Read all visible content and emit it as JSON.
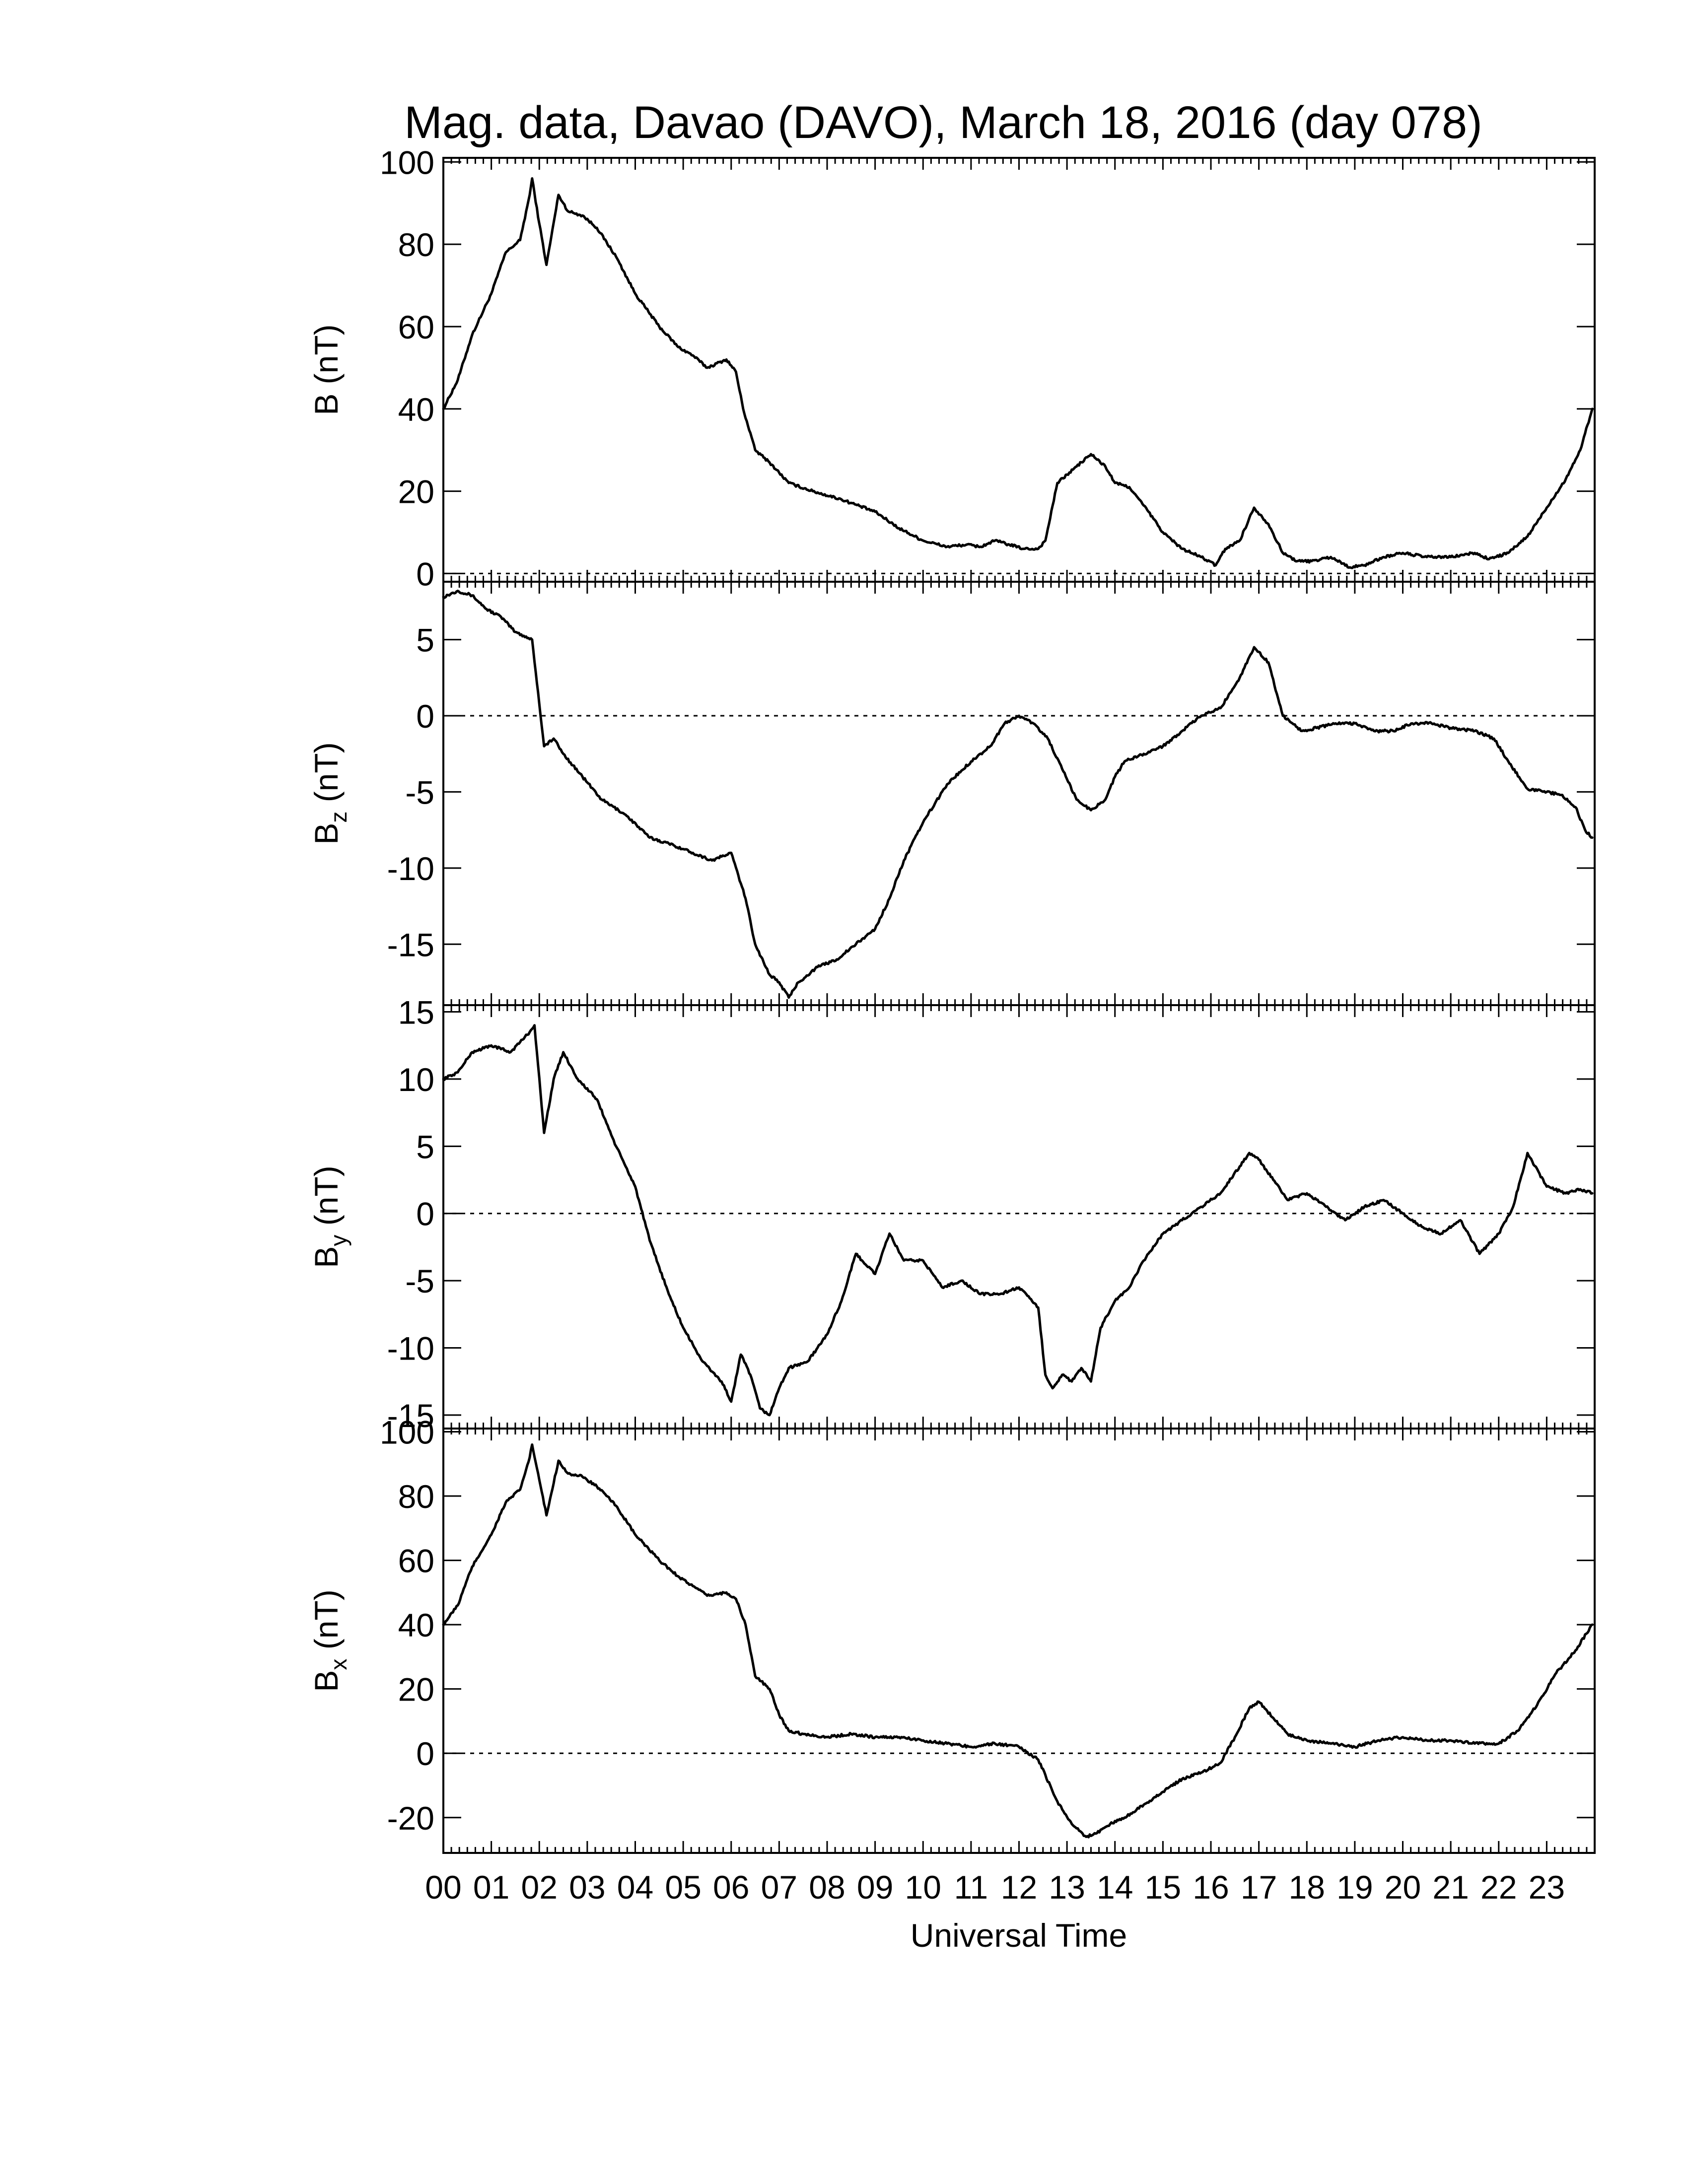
{
  "title": "Mag. data, Davao (DAVO), March 18, 2016 (day 078)",
  "xlabel": "Universal Time",
  "chart_data": [
    {
      "type": "line",
      "id": "B",
      "ylabel": "B (nT)",
      "ylabel_main": "B (nT)",
      "ylabel_sub": "",
      "ylabel_tail": "",
      "ylim": [
        -2,
        101
      ],
      "yticks": [
        0,
        20,
        40,
        60,
        80,
        100
      ],
      "zero_line": true,
      "x_unit": "UT hours",
      "x": [
        0,
        0.3,
        0.6,
        1.0,
        1.3,
        1.6,
        1.8,
        1.85,
        2.0,
        2.15,
        2.4,
        2.6,
        2.9,
        3.2,
        3.6,
        4.0,
        4.5,
        4.9,
        5.2,
        5.5,
        5.9,
        6.1,
        6.25,
        6.5,
        6.8,
        7.2,
        7.7,
        8.3,
        9.0,
        9.5,
        10.0,
        10.5,
        10.9,
        11.2,
        11.5,
        11.8,
        12.1,
        12.4,
        12.55,
        12.8,
        13.2,
        13.5,
        13.8,
        14.0,
        14.3,
        14.7,
        15.0,
        15.4,
        15.8,
        16.1,
        16.3,
        16.6,
        16.9,
        17.2,
        17.5,
        17.8,
        18.1,
        18.5,
        18.9,
        19.2,
        19.6,
        20.0,
        20.5,
        21.0,
        21.5,
        21.8,
        22.2,
        22.6,
        23.0,
        23.4,
        23.7,
        23.95
      ],
      "values": [
        40,
        47,
        58,
        68,
        78,
        81,
        92,
        96,
        85,
        75,
        92,
        88,
        87,
        84,
        77,
        68,
        60,
        55,
        53,
        50,
        52,
        49,
        40,
        30,
        27,
        22,
        20,
        18,
        15,
        11,
        8,
        6.5,
        7,
        6.5,
        8,
        7,
        6,
        6,
        8,
        22,
        26,
        29,
        26,
        22,
        21,
        15,
        10,
        6,
        4,
        2,
        6,
        8,
        16,
        12,
        5,
        3,
        3,
        4,
        1.5,
        2,
        4,
        5,
        4,
        4,
        5,
        3.5,
        5,
        9,
        16,
        23,
        30,
        40
      ]
    },
    {
      "type": "line",
      "id": "Bz",
      "ylabel": "Bz (nT)",
      "ylabel_main": "B",
      "ylabel_sub": "z",
      "ylabel_tail": " (nT)",
      "ylim": [
        -19,
        8.8
      ],
      "yticks": [
        -15,
        -10,
        -5,
        0,
        5
      ],
      "zero_line": true,
      "x_unit": "UT hours",
      "x": [
        0,
        0.3,
        0.6,
        0.9,
        1.2,
        1.5,
        1.85,
        2.1,
        2.3,
        2.5,
        2.9,
        3.3,
        3.8,
        4.3,
        4.8,
        5.2,
        5.6,
        6.0,
        6.3,
        6.5,
        6.8,
        7.0,
        7.2,
        7.4,
        7.8,
        8.2,
        8.6,
        9.0,
        9.3,
        9.6,
        10.0,
        10.5,
        11.0,
        11.4,
        11.7,
        12.0,
        12.3,
        12.6,
        12.9,
        13.2,
        13.5,
        13.8,
        14.0,
        14.2,
        14.6,
        15.0,
        15.4,
        15.8,
        16.2,
        16.6,
        16.9,
        17.2,
        17.5,
        17.9,
        18.2,
        18.6,
        19.0,
        19.4,
        19.8,
        20.2,
        20.6,
        21.0,
        21.5,
        21.9,
        22.2,
        22.6,
        23.0,
        23.3,
        23.6,
        23.8,
        23.95
      ],
      "values": [
        7.8,
        8.2,
        7.9,
        7.0,
        6.5,
        5.5,
        5.0,
        -2.0,
        -1.5,
        -2.5,
        -4.0,
        -5.5,
        -6.5,
        -8.0,
        -8.5,
        -9.0,
        -9.5,
        -9.0,
        -12.0,
        -15.0,
        -17.0,
        -17.5,
        -18.5,
        -17.5,
        -16.5,
        -16.0,
        -15.0,
        -14.0,
        -12.0,
        -9.5,
        -7.0,
        -4.5,
        -3.0,
        -2.0,
        -0.5,
        0.0,
        -0.5,
        -1.5,
        -3.5,
        -5.5,
        -6.2,
        -5.5,
        -4.0,
        -3.0,
        -2.5,
        -2.0,
        -1.0,
        0.0,
        0.5,
        2.5,
        4.5,
        3.5,
        0.0,
        -1.0,
        -0.8,
        -0.5,
        -0.5,
        -1.0,
        -1.0,
        -0.5,
        -0.5,
        -0.8,
        -1.0,
        -1.5,
        -3.0,
        -4.8,
        -5.0,
        -5.2,
        -6.0,
        -7.5,
        -8.0
      ]
    },
    {
      "type": "line",
      "id": "By",
      "ylabel": "By (nT)",
      "ylabel_main": "B",
      "ylabel_sub": "y",
      "ylabel_tail": " (nT)",
      "ylim": [
        -16,
        15.5
      ],
      "yticks": [
        -15,
        -10,
        -5,
        0,
        5,
        10,
        15
      ],
      "zero_line": true,
      "x_unit": "UT hours",
      "x": [
        0,
        0.3,
        0.6,
        1.0,
        1.4,
        1.8,
        1.9,
        2.1,
        2.3,
        2.5,
        2.8,
        3.2,
        3.6,
        4.0,
        4.3,
        4.7,
        5.0,
        5.4,
        5.8,
        6.0,
        6.2,
        6.4,
        6.6,
        6.8,
        7.0,
        7.2,
        7.6,
        8.0,
        8.3,
        8.6,
        9.0,
        9.3,
        9.6,
        10.0,
        10.4,
        10.8,
        11.2,
        11.6,
        12.0,
        12.4,
        12.55,
        12.7,
        12.9,
        13.1,
        13.3,
        13.5,
        13.7,
        14.0,
        14.3,
        14.6,
        15.0,
        15.4,
        15.8,
        16.2,
        16.6,
        16.8,
        17.0,
        17.3,
        17.6,
        18.0,
        18.4,
        18.8,
        19.2,
        19.6,
        20.0,
        20.4,
        20.8,
        21.2,
        21.6,
        22.0,
        22.3,
        22.6,
        23.0,
        23.4,
        23.7,
        23.95
      ],
      "values": [
        10.0,
        10.5,
        12.0,
        12.5,
        12.0,
        13.5,
        14.0,
        6.0,
        10.0,
        12.0,
        10.0,
        8.5,
        5.0,
        2.0,
        -2.0,
        -6.0,
        -8.5,
        -11.0,
        -12.5,
        -14.0,
        -10.5,
        -12.0,
        -14.5,
        -15.0,
        -13.0,
        -11.5,
        -11.0,
        -9.0,
        -6.5,
        -3.0,
        -4.5,
        -1.5,
        -3.5,
        -3.5,
        -5.5,
        -5.0,
        -6.0,
        -6.0,
        -5.5,
        -7.0,
        -12.0,
        -13.0,
        -12.0,
        -12.5,
        -11.5,
        -12.5,
        -8.5,
        -6.5,
        -5.5,
        -3.5,
        -1.5,
        -0.5,
        0.5,
        1.5,
        3.5,
        4.5,
        4.0,
        2.5,
        1.0,
        1.5,
        0.5,
        -0.5,
        0.5,
        1.0,
        0.0,
        -1.0,
        -1.5,
        -0.5,
        -3.0,
        -1.5,
        0.5,
        4.5,
        2.0,
        1.5,
        1.8,
        1.5
      ]
    },
    {
      "type": "line",
      "id": "Bx",
      "ylabel": "Bx (nT)",
      "ylabel_main": "B",
      "ylabel_sub": "x",
      "ylabel_tail": " (nT)",
      "ylim": [
        -31,
        101
      ],
      "yticks": [
        -20,
        0,
        20,
        40,
        60,
        80,
        100
      ],
      "zero_line": true,
      "x_unit": "UT hours",
      "x": [
        0,
        0.3,
        0.6,
        1.0,
        1.3,
        1.6,
        1.8,
        1.85,
        2.0,
        2.15,
        2.4,
        2.6,
        2.9,
        3.2,
        3.6,
        4.0,
        4.5,
        4.9,
        5.2,
        5.5,
        5.9,
        6.1,
        6.3,
        6.5,
        6.8,
        7.0,
        7.2,
        7.5,
        8.0,
        8.5,
        9.0,
        9.5,
        10.0,
        10.5,
        11.0,
        11.5,
        12.0,
        12.4,
        12.8,
        13.1,
        13.4,
        13.6,
        13.9,
        14.2,
        14.6,
        15.0,
        15.4,
        15.8,
        16.2,
        16.5,
        16.8,
        17.0,
        17.3,
        17.6,
        18.0,
        18.5,
        19.0,
        19.5,
        20.0,
        20.5,
        21.0,
        21.5,
        22.0,
        22.4,
        22.8,
        23.2,
        23.6,
        23.95
      ],
      "values": [
        40,
        46,
        58,
        68,
        78,
        82,
        92,
        96,
        85,
        74,
        91,
        87,
        86,
        83,
        77,
        68,
        60,
        55,
        52,
        49,
        50,
        48,
        40,
        24,
        20,
        12,
        7,
        6,
        5,
        6,
        5,
        5,
        4,
        3,
        2,
        3,
        2,
        -2,
        -15,
        -22,
        -26,
        -25,
        -22,
        -20,
        -16,
        -12,
        -8,
        -6,
        -3,
        5,
        14,
        16,
        11,
        6,
        4,
        3,
        2,
        4,
        5,
        4,
        4,
        3,
        3,
        7,
        15,
        25,
        32,
        40
      ]
    }
  ],
  "x_axis": {
    "range": [
      0,
      24
    ],
    "ticks": [
      "00",
      "01",
      "02",
      "03",
      "04",
      "05",
      "06",
      "07",
      "08",
      "09",
      "10",
      "11",
      "12",
      "13",
      "14",
      "15",
      "16",
      "17",
      "18",
      "19",
      "20",
      "21",
      "22",
      "23"
    ]
  }
}
